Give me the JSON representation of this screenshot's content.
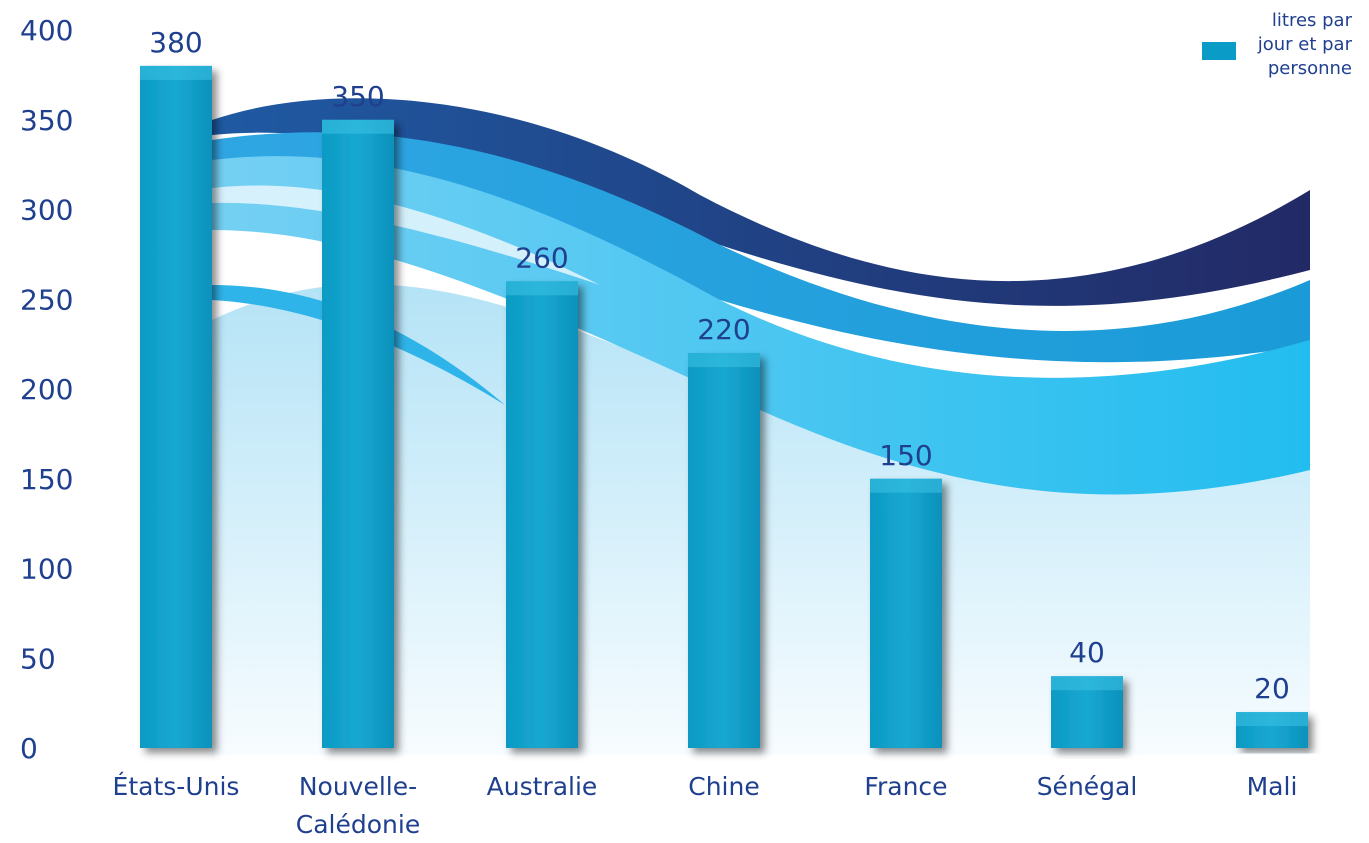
{
  "chart_data": {
    "type": "bar",
    "categories": [
      [
        "États-Unis"
      ],
      [
        "Nouvelle-",
        "Calédonie"
      ],
      [
        "Australie"
      ],
      [
        "Chine"
      ],
      [
        "France"
      ],
      [
        "Sénégal"
      ],
      [
        "Mali"
      ]
    ],
    "values": [
      380,
      350,
      260,
      220,
      150,
      40,
      20
    ],
    "value_labels": [
      "380",
      "350",
      "260",
      "220",
      "150",
      "40",
      "20"
    ],
    "y_ticks": [
      0,
      50,
      100,
      150,
      200,
      250,
      300,
      350,
      400
    ],
    "ylim": [
      0,
      400
    ],
    "grid": false,
    "legend": {
      "position": "top-right",
      "lines": [
        "litres par",
        "jour et par",
        "personne"
      ]
    },
    "colors": {
      "bar": "#0a9cc7",
      "bar_dark": "#07779c",
      "text": "#1f3f8f",
      "wave_dark": "#1e3a7a",
      "wave_mid": "#1aa8e0",
      "wave_light": "#4fc6ef"
    }
  }
}
